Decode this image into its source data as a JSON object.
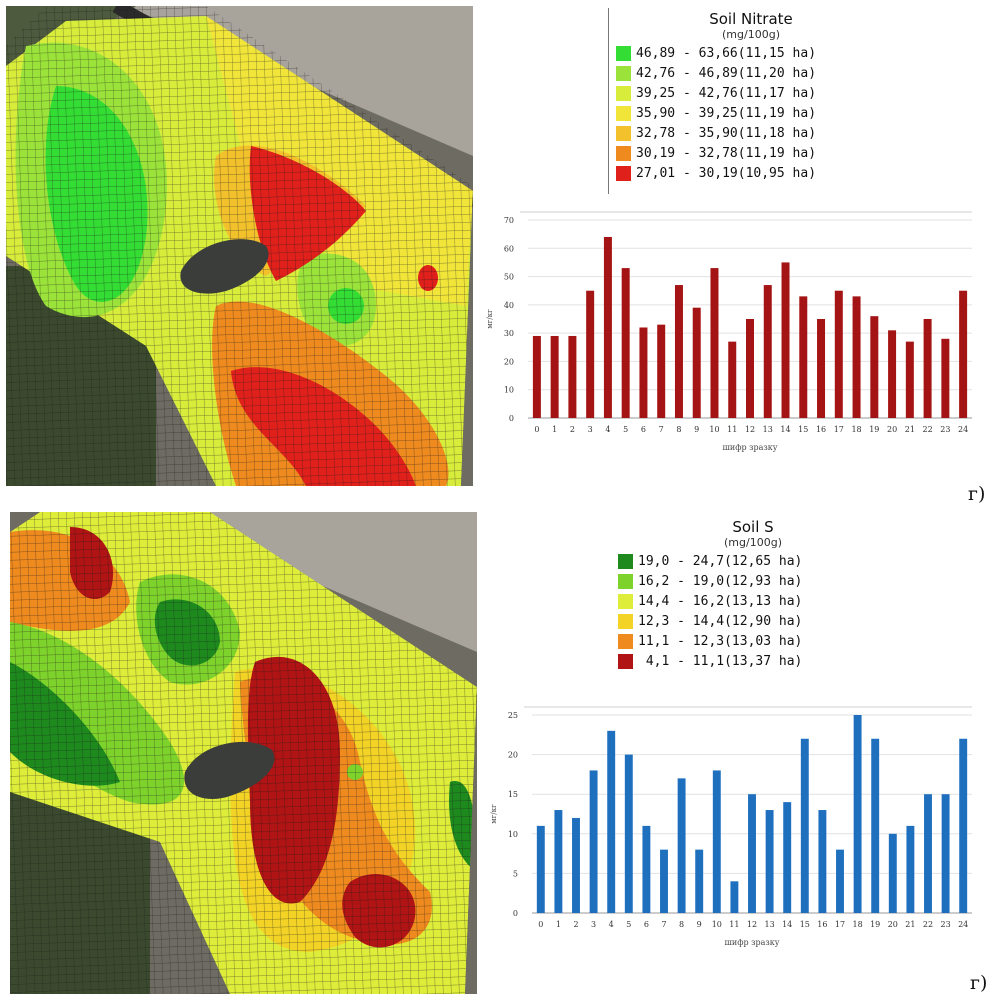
{
  "figures": [
    {
      "legend": {
        "title": "Soil Nitrate",
        "unit": "(mg/100g)",
        "items": [
          {
            "range": "46,89 - 63,66",
            "area": "(11,15 ha)",
            "color": "#33dd33"
          },
          {
            "range": "42,76 - 46,89",
            "area": "(11,20 ha)",
            "color": "#9be33a"
          },
          {
            "range": "39,25 - 42,76",
            "area": "(11,17 ha)",
            "color": "#d8ec3c"
          },
          {
            "range": "35,90 - 39,25",
            "area": "(11,19 ha)",
            "color": "#f2e53a"
          },
          {
            "range": "32,78 - 35,90",
            "area": "(11,18 ha)",
            "color": "#f2c12c"
          },
          {
            "range": "30,19 - 32,78",
            "area": "(11,19 ha)",
            "color": "#ef8a1e"
          },
          {
            "range": "27,01 - 30,19",
            "area": "(10,95 ha)",
            "color": "#e0201b"
          }
        ]
      },
      "label": "г)"
    },
    {
      "legend": {
        "title": "Soil S",
        "unit": "(mg/100g)",
        "items": [
          {
            "range": "19,0 - 24,7",
            "area": "(12,65 ha)",
            "color": "#1e8a1e"
          },
          {
            "range": "16,2 - 19,0",
            "area": "(12,93 ha)",
            "color": "#7ed22c"
          },
          {
            "range": "14,4 - 16,2",
            "area": "(13,13 ha)",
            "color": "#dded3a"
          },
          {
            "range": "12,3 - 14,4",
            "area": "(12,90 ha)",
            "color": "#f2d326"
          },
          {
            "range": "11,1 - 12,3",
            "area": "(13,03 ha)",
            "color": "#ef8a1e"
          },
          {
            "range": " 4,1 - 11,1",
            "area": "(13,37 ha)",
            "color": "#b01414"
          }
        ]
      },
      "label": "г)"
    }
  ],
  "chart_data": [
    {
      "type": "bar",
      "categories": [
        "0",
        "1",
        "2",
        "3",
        "4",
        "5",
        "6",
        "7",
        "8",
        "9",
        "10",
        "11",
        "12",
        "13",
        "14",
        "15",
        "16",
        "17",
        "18",
        "19",
        "20",
        "21",
        "22",
        "23",
        "24"
      ],
      "values": [
        29,
        29,
        29,
        45,
        64,
        53,
        32,
        33,
        47,
        39,
        53,
        27,
        35,
        47,
        55,
        43,
        35,
        45,
        43,
        36,
        31,
        27,
        35,
        28,
        45
      ],
      "ylim": [
        0,
        70
      ],
      "yticks": [
        0,
        10,
        20,
        30,
        40,
        50,
        60,
        70
      ],
      "xlabel": "шифр зразку",
      "ylabel": "мг/кг",
      "color": "#a51414",
      "grid": true
    },
    {
      "type": "bar",
      "categories": [
        "0",
        "1",
        "2",
        "3",
        "4",
        "5",
        "6",
        "7",
        "8",
        "9",
        "10",
        "11",
        "12",
        "13",
        "14",
        "15",
        "16",
        "17",
        "18",
        "19",
        "20",
        "21",
        "22",
        "23",
        "24"
      ],
      "values": [
        11,
        13,
        12,
        18,
        23,
        20,
        11,
        8,
        17,
        8,
        18,
        4,
        15,
        13,
        14,
        22,
        13,
        8,
        25,
        22,
        10,
        11,
        15,
        15,
        22
      ],
      "ylim": [
        0,
        25
      ],
      "yticks": [
        0,
        5,
        10,
        15,
        20,
        25
      ],
      "xlabel": "шифр зразку",
      "ylabel": "мг/кг",
      "color": "#1f6fbf",
      "grid": true
    }
  ]
}
